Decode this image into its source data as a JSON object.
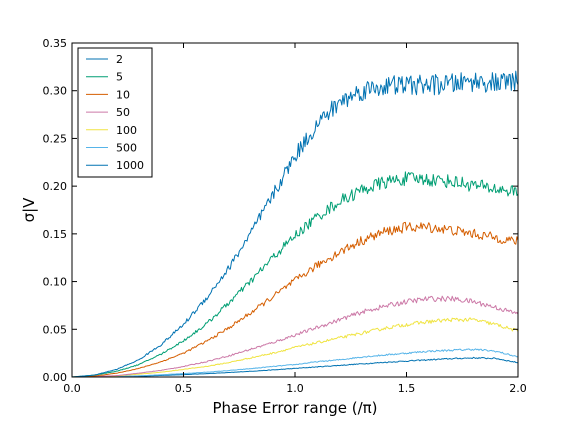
{
  "chart_data": {
    "type": "line",
    "title": "",
    "xlabel": "Phase Error range (/π)",
    "ylabel": "σ|V",
    "xlim": [
      0.0,
      2.0
    ],
    "ylim": [
      0.0,
      0.35
    ],
    "xticks": [
      "0.0",
      "0.5",
      "1.0",
      "1.5",
      "2.0"
    ],
    "yticks": [
      "0.00",
      "0.05",
      "0.10",
      "0.15",
      "0.20",
      "0.25",
      "0.30",
      "0.35"
    ],
    "grid": false,
    "legend_position": "top-left",
    "x": [
      0.0,
      0.1,
      0.2,
      0.3,
      0.4,
      0.5,
      0.6,
      0.7,
      0.8,
      0.9,
      1.0,
      1.1,
      1.2,
      1.3,
      1.4,
      1.5,
      1.6,
      1.7,
      1.8,
      1.9,
      2.0
    ],
    "series": [
      {
        "name": "2",
        "color": "#0072b2",
        "values": [
          0.0,
          0.002,
          0.008,
          0.018,
          0.034,
          0.055,
          0.082,
          0.113,
          0.15,
          0.19,
          0.232,
          0.265,
          0.288,
          0.3,
          0.305,
          0.306,
          0.306,
          0.307,
          0.31,
          0.308,
          0.31
        ]
      },
      {
        "name": "5",
        "color": "#009e73",
        "values": [
          0.0,
          0.002,
          0.006,
          0.013,
          0.024,
          0.038,
          0.055,
          0.077,
          0.1,
          0.125,
          0.148,
          0.168,
          0.184,
          0.196,
          0.204,
          0.208,
          0.207,
          0.205,
          0.201,
          0.197,
          0.194
        ]
      },
      {
        "name": "10",
        "color": "#d55e00",
        "values": [
          0.0,
          0.001,
          0.004,
          0.009,
          0.016,
          0.025,
          0.037,
          0.051,
          0.067,
          0.084,
          0.101,
          0.117,
          0.131,
          0.143,
          0.152,
          0.157,
          0.157,
          0.154,
          0.15,
          0.146,
          0.142
        ]
      },
      {
        "name": "50",
        "color": "#cc79a7",
        "values": [
          0.0,
          0.0005,
          0.0015,
          0.004,
          0.007,
          0.011,
          0.016,
          0.022,
          0.029,
          0.036,
          0.044,
          0.052,
          0.06,
          0.068,
          0.074,
          0.079,
          0.082,
          0.082,
          0.079,
          0.073,
          0.066
        ]
      },
      {
        "name": "100",
        "color": "#f0e442",
        "values": [
          0.0,
          0.0004,
          0.0012,
          0.003,
          0.005,
          0.008,
          0.011,
          0.015,
          0.02,
          0.025,
          0.031,
          0.036,
          0.041,
          0.046,
          0.051,
          0.055,
          0.058,
          0.06,
          0.06,
          0.055,
          0.048
        ]
      },
      {
        "name": "500",
        "color": "#56b4e9",
        "values": [
          0.0,
          0.0002,
          0.0006,
          0.0013,
          0.0023,
          0.0036,
          0.005,
          0.0067,
          0.0087,
          0.011,
          0.013,
          0.016,
          0.018,
          0.021,
          0.023,
          0.025,
          0.027,
          0.028,
          0.029,
          0.027,
          0.021
        ]
      },
      {
        "name": "1000",
        "color": "#0072b2",
        "values": [
          0.0,
          0.0001,
          0.0004,
          0.0009,
          0.0016,
          0.0025,
          0.0035,
          0.0046,
          0.006,
          0.0074,
          0.009,
          0.0106,
          0.0122,
          0.0138,
          0.0153,
          0.0167,
          0.018,
          0.0192,
          0.02,
          0.0195,
          0.015
        ]
      }
    ]
  }
}
